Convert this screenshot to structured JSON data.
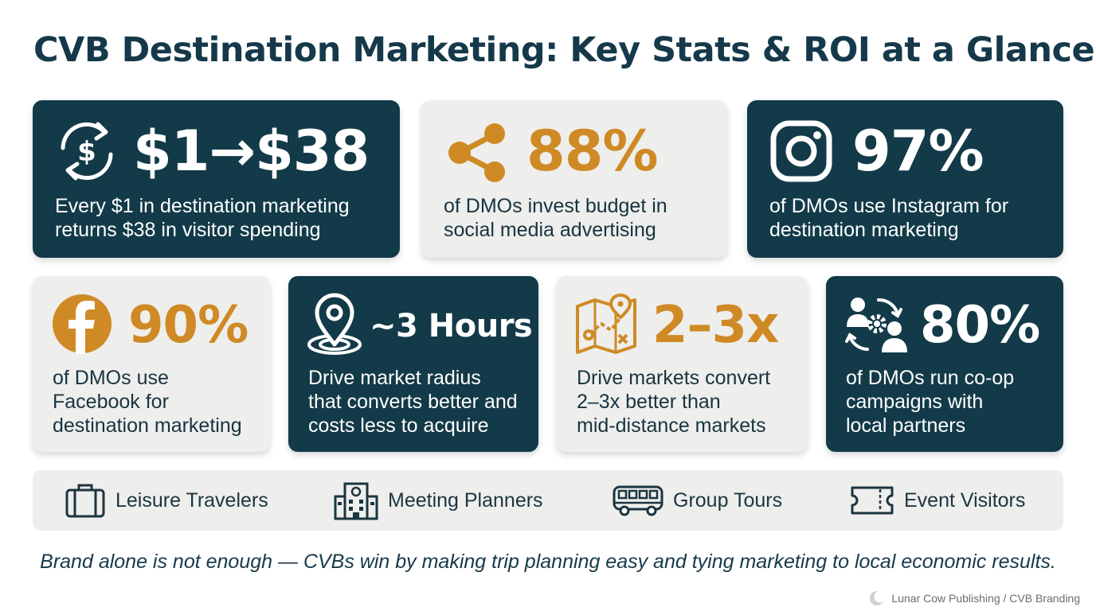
{
  "title": "CVB Destination Marketing: Key Stats & ROI at a Glance",
  "cards": [
    {
      "icon": "dollar-cycle-icon",
      "stat": "$1→$38",
      "description_lines": [
        "Every $1 in destination marketing",
        "returns $38 in visitor spending"
      ]
    },
    {
      "icon": "share-icon",
      "stat": "88%",
      "description_lines": [
        "of DMOs invest budget in",
        "social media advertising"
      ]
    },
    {
      "icon": "instagram-icon",
      "stat": "97%",
      "description_lines": [
        "of DMOs use Instagram for",
        "destination marketing"
      ]
    },
    {
      "icon": "facebook-icon",
      "stat": "90%",
      "description_lines": [
        "of DMOs use",
        "Facebook for",
        "destination marketing"
      ]
    },
    {
      "icon": "location-pin-icon",
      "stat": "~3 Hours",
      "description_lines": [
        "Drive market radius",
        "that converts better and",
        "costs less to acquire"
      ]
    },
    {
      "icon": "route-map-icon",
      "stat": "2–3x",
      "description_lines": [
        "Drive markets convert",
        "2–3x better than",
        "mid-distance markets"
      ]
    },
    {
      "icon": "partners-gear-icon",
      "stat": "80%",
      "description_lines": [
        "of DMOs run co-op",
        "campaigns with",
        "local partners"
      ]
    }
  ],
  "audiences": [
    {
      "icon": "suitcase-icon",
      "label": "Leisure Travelers"
    },
    {
      "icon": "building-icon",
      "label": "Meeting Planners"
    },
    {
      "icon": "bus-icon",
      "label": "Group Tours"
    },
    {
      "icon": "ticket-icon",
      "label": "Event Visitors"
    }
  ],
  "tagline": "Brand alone is not enough — CVBs win by making trip planning easy and tying marketing to local economic results.",
  "footer": {
    "icon": "moon-logo-icon",
    "text": "Lunar Cow Publishing / CVB Branding"
  },
  "colors": {
    "dark_card": "#133a48",
    "light_card": "#eeeeec",
    "accent_orange": "#cf8a25",
    "title": "#15394a"
  }
}
